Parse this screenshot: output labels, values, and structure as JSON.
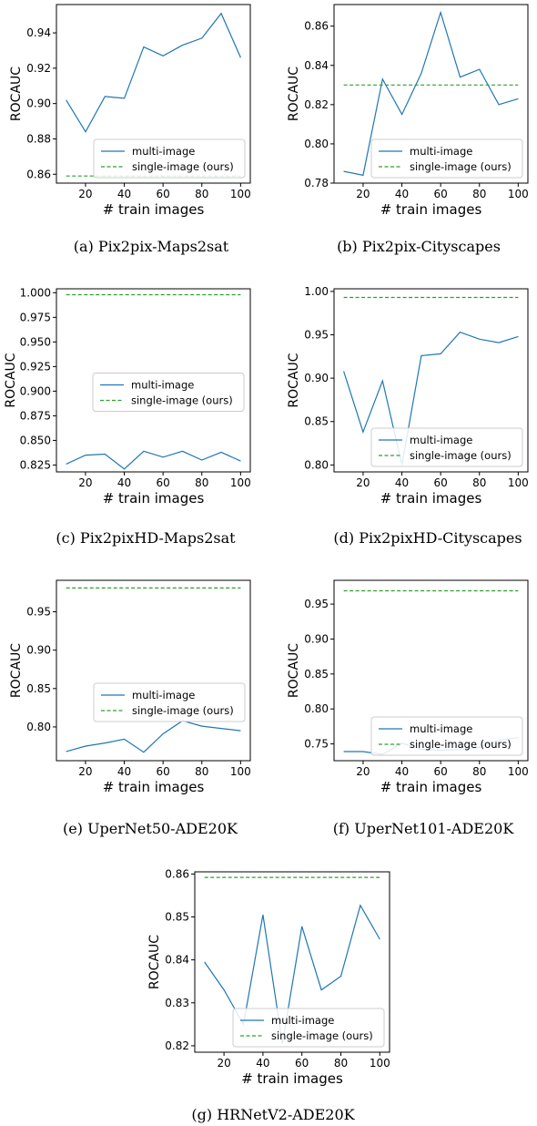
{
  "chart_data": [
    {
      "type": "line",
      "caption": "(a) Pix2pix-Maps2sat",
      "xlabel": "# train images",
      "ylabel": "ROCAUC",
      "xlim": [
        5,
        105
      ],
      "ylim": [
        0.855,
        0.956
      ],
      "xticks": [
        20,
        40,
        60,
        80,
        100
      ],
      "yticks": [
        0.86,
        0.88,
        0.9,
        0.92,
        0.94
      ],
      "ytick_labels": [
        "0.86",
        "0.88",
        "0.90",
        "0.92",
        "0.94"
      ],
      "legend_position": "lower-right",
      "series": [
        {
          "name": "multi-image",
          "style": "solid",
          "color": "#1f77b4",
          "x": [
            10,
            20,
            30,
            40,
            50,
            60,
            70,
            80,
            90,
            100
          ],
          "y": [
            0.902,
            0.884,
            0.904,
            0.903,
            0.932,
            0.927,
            0.933,
            0.937,
            0.951,
            0.926
          ]
        },
        {
          "name": "single-image (ours)",
          "style": "dashed",
          "color": "#2ca02c",
          "x": [
            10,
            100
          ],
          "y": [
            0.859,
            0.859
          ]
        }
      ]
    },
    {
      "type": "line",
      "caption": "(b) Pix2pix-Cityscapes",
      "xlabel": "# train images",
      "ylabel": "ROCAUC",
      "xlim": [
        5,
        105
      ],
      "ylim": [
        0.78,
        0.871
      ],
      "xticks": [
        20,
        40,
        60,
        80,
        100
      ],
      "yticks": [
        0.78,
        0.8,
        0.82,
        0.84,
        0.86
      ],
      "ytick_labels": [
        "0.78",
        "0.80",
        "0.82",
        "0.84",
        "0.86"
      ],
      "legend_position": "lower-right",
      "series": [
        {
          "name": "multi-image",
          "style": "solid",
          "color": "#1f77b4",
          "x": [
            10,
            20,
            30,
            40,
            50,
            60,
            70,
            80,
            90,
            100
          ],
          "y": [
            0.786,
            0.784,
            0.833,
            0.815,
            0.836,
            0.867,
            0.834,
            0.838,
            0.82,
            0.823
          ]
        },
        {
          "name": "single-image (ours)",
          "style": "dashed",
          "color": "#2ca02c",
          "x": [
            10,
            100
          ],
          "y": [
            0.83,
            0.83
          ]
        }
      ]
    },
    {
      "type": "line",
      "caption": "(c) Pix2pixHD-Maps2sat",
      "xlabel": "# train images",
      "ylabel": "ROCAUC",
      "xlim": [
        5,
        105
      ],
      "ylim": [
        0.818,
        1.004
      ],
      "xticks": [
        20,
        40,
        60,
        80,
        100
      ],
      "yticks": [
        0.825,
        0.85,
        0.875,
        0.9,
        0.925,
        0.95,
        0.975,
        1.0
      ],
      "ytick_labels": [
        "0.825",
        "0.850",
        "0.875",
        "0.900",
        "0.925",
        "0.950",
        "0.975",
        "1.000"
      ],
      "legend_position": "center",
      "series": [
        {
          "name": "multi-image",
          "style": "solid",
          "color": "#1f77b4",
          "x": [
            10,
            20,
            30,
            40,
            50,
            60,
            70,
            80,
            90,
            100
          ],
          "y": [
            0.826,
            0.835,
            0.836,
            0.821,
            0.839,
            0.833,
            0.839,
            0.83,
            0.838,
            0.829
          ]
        },
        {
          "name": "single-image (ours)",
          "style": "dashed",
          "color": "#2ca02c",
          "x": [
            10,
            100
          ],
          "y": [
            0.998,
            0.998
          ]
        }
      ]
    },
    {
      "type": "line",
      "caption": "(d) Pix2pixHD-Cityscapes",
      "xlabel": "# train images",
      "ylabel": "ROCAUC",
      "xlim": [
        5,
        105
      ],
      "ylim": [
        0.792,
        1.003
      ],
      "xticks": [
        20,
        40,
        60,
        80,
        100
      ],
      "yticks": [
        0.8,
        0.85,
        0.9,
        0.95,
        1.0
      ],
      "ytick_labels": [
        "0.80",
        "0.85",
        "0.90",
        "0.95",
        "1.00"
      ],
      "legend_position": "lower-right",
      "series": [
        {
          "name": "multi-image",
          "style": "solid",
          "color": "#1f77b4",
          "x": [
            10,
            20,
            30,
            40,
            50,
            60,
            70,
            80,
            90,
            100
          ],
          "y": [
            0.908,
            0.838,
            0.897,
            0.8,
            0.926,
            0.928,
            0.953,
            0.945,
            0.941,
            0.948
          ]
        },
        {
          "name": "single-image (ours)",
          "style": "dashed",
          "color": "#2ca02c",
          "x": [
            10,
            100
          ],
          "y": [
            0.993,
            0.993
          ]
        }
      ]
    },
    {
      "type": "line",
      "caption": "(e) UperNet50-ADE20K",
      "xlabel": "# train images",
      "ylabel": "ROCAUC",
      "xlim": [
        5,
        105
      ],
      "ylim": [
        0.756,
        0.991
      ],
      "xticks": [
        20,
        40,
        60,
        80,
        100
      ],
      "yticks": [
        0.8,
        0.85,
        0.9,
        0.95
      ],
      "ytick_labels": [
        "0.80",
        "0.85",
        "0.90",
        "0.95"
      ],
      "legend_position": "center-right",
      "series": [
        {
          "name": "multi-image",
          "style": "solid",
          "color": "#1f77b4",
          "x": [
            10,
            20,
            30,
            40,
            50,
            60,
            70,
            80,
            90,
            100
          ],
          "y": [
            0.768,
            0.775,
            0.779,
            0.784,
            0.767,
            0.791,
            0.808,
            0.801,
            0.798,
            0.795
          ]
        },
        {
          "name": "single-image (ours)",
          "style": "dashed",
          "color": "#2ca02c",
          "x": [
            10,
            100
          ],
          "y": [
            0.981,
            0.981
          ]
        }
      ]
    },
    {
      "type": "line",
      "caption": "(f) UperNet101-ADE20K",
      "xlabel": "# train images",
      "ylabel": "ROCAUC",
      "xlim": [
        5,
        105
      ],
      "ylim": [
        0.726,
        0.984
      ],
      "xticks": [
        20,
        40,
        60,
        80,
        100
      ],
      "yticks": [
        0.75,
        0.8,
        0.85,
        0.9,
        0.95
      ],
      "ytick_labels": [
        "0.75",
        "0.80",
        "0.85",
        "0.90",
        "0.95"
      ],
      "legend_position": "lower-right",
      "series": [
        {
          "name": "multi-image",
          "style": "solid",
          "color": "#1f77b4",
          "x": [
            10,
            20,
            30,
            40,
            50,
            60,
            70,
            80,
            90,
            100
          ],
          "y": [
            0.739,
            0.739,
            0.735,
            0.751,
            0.742,
            0.741,
            0.742,
            0.745,
            0.755,
            0.759
          ]
        },
        {
          "name": "single-image (ours)",
          "style": "dashed",
          "color": "#2ca02c",
          "x": [
            10,
            100
          ],
          "y": [
            0.969,
            0.969
          ]
        }
      ]
    },
    {
      "type": "line",
      "caption": "(g) HRNetV2-ADE20K",
      "xlabel": "# train images",
      "ylabel": "ROCAUC",
      "xlim": [
        5,
        105
      ],
      "ylim": [
        0.8185,
        0.8605
      ],
      "xticks": [
        20,
        40,
        60,
        80,
        100
      ],
      "yticks": [
        0.82,
        0.83,
        0.84,
        0.85,
        0.86
      ],
      "ytick_labels": [
        "0.82",
        "0.83",
        "0.84",
        "0.85",
        "0.86"
      ],
      "legend_position": "lower-right",
      "series": [
        {
          "name": "multi-image",
          "style": "solid",
          "color": "#1f77b4",
          "x": [
            10,
            20,
            30,
            40,
            50,
            60,
            70,
            80,
            90,
            100
          ],
          "y": [
            0.8395,
            0.833,
            0.825,
            0.8505,
            0.8205,
            0.8478,
            0.833,
            0.8362,
            0.8527,
            0.8448
          ]
        },
        {
          "name": "single-image (ours)",
          "style": "dashed",
          "color": "#2ca02c",
          "x": [
            10,
            100
          ],
          "y": [
            0.8592,
            0.8592
          ]
        }
      ]
    }
  ]
}
